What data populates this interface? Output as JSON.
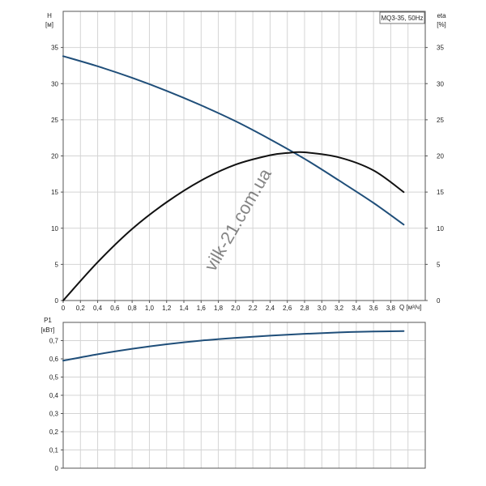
{
  "chart_data": [
    {
      "type": "line",
      "title": "MQ3-35, 50Hz",
      "xlabel": "Q [м³/ч]",
      "ylabel": "H",
      "ylabel_unit": "[м]",
      "y2label": "eta",
      "y2label_unit": "[%]",
      "xlim": [
        0,
        4.2
      ],
      "ylim": [
        0,
        40
      ],
      "y2lim": [
        0,
        40
      ],
      "x_ticks": [
        "0",
        "0,2",
        "0,4",
        "0,6",
        "0,8",
        "1,0",
        "1,2",
        "1,4",
        "1,6",
        "1,8",
        "2,0",
        "2,2",
        "2,4",
        "2,6",
        "2,8",
        "3,0",
        "3,2",
        "3,4",
        "3,6",
        "3,8"
      ],
      "y_ticks": [
        "0",
        "5",
        "10",
        "15",
        "20",
        "25",
        "30",
        "35"
      ],
      "y2_ticks": [
        "0",
        "5",
        "10",
        "15",
        "20",
        "25",
        "30",
        "35"
      ],
      "grid": true,
      "series": [
        {
          "id": "H",
          "color": "#1f4e79",
          "axis": "left",
          "x": [
            0,
            0.4,
            0.8,
            1.2,
            1.6,
            2.0,
            2.4,
            2.8,
            3.2,
            3.6,
            3.95
          ],
          "y": [
            33.8,
            32.4,
            30.8,
            29.0,
            27.0,
            24.8,
            22.3,
            19.6,
            16.6,
            13.5,
            10.5
          ]
        },
        {
          "id": "eta",
          "color": "#111111",
          "axis": "right",
          "x": [
            0,
            0.4,
            0.8,
            1.2,
            1.6,
            2.0,
            2.4,
            2.6,
            2.8,
            3.2,
            3.6,
            3.95
          ],
          "y": [
            0,
            5.3,
            9.9,
            13.6,
            16.6,
            18.8,
            20.1,
            20.4,
            20.5,
            19.8,
            18.0,
            15.0
          ]
        }
      ]
    },
    {
      "type": "line",
      "xlabel": "",
      "ylabel": "P1",
      "ylabel_unit": "[кВт]",
      "xlim": [
        0,
        4.2
      ],
      "ylim": [
        0,
        0.8
      ],
      "y_ticks": [
        "0",
        "0,1",
        "0,2",
        "0,3",
        "0,4",
        "0,5",
        "0,6",
        "0,7"
      ],
      "grid": true,
      "series": [
        {
          "id": "P1",
          "color": "#1f4e79",
          "axis": "left",
          "x": [
            0,
            0.4,
            0.8,
            1.2,
            1.6,
            2.0,
            2.4,
            2.8,
            3.2,
            3.6,
            3.95
          ],
          "y": [
            0.59,
            0.625,
            0.655,
            0.68,
            0.7,
            0.715,
            0.727,
            0.737,
            0.745,
            0.75,
            0.752
          ]
        }
      ]
    }
  ],
  "watermark": "vilk-21.com.ua"
}
